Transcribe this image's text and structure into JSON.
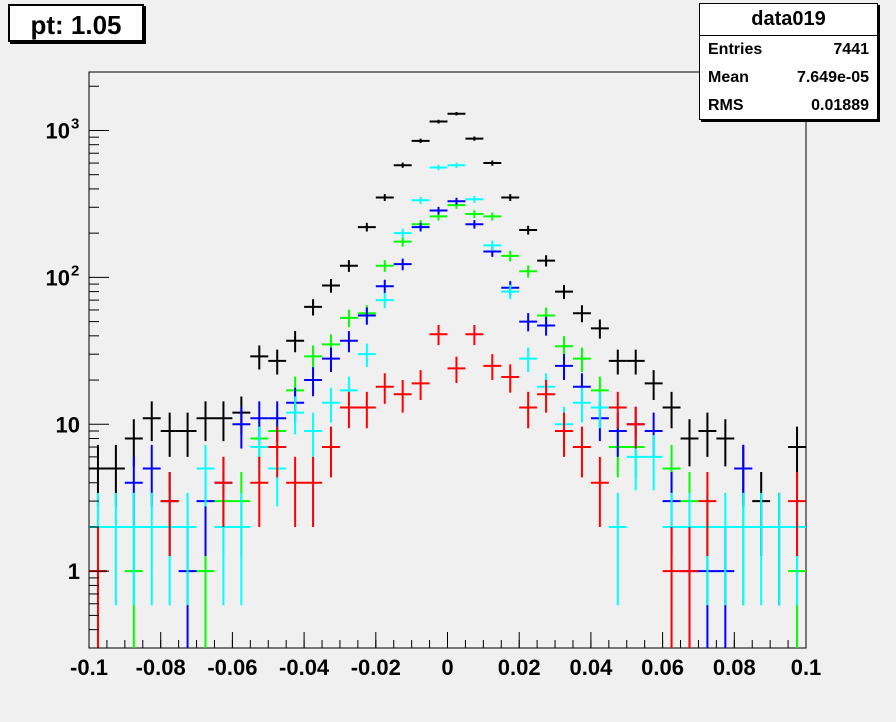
{
  "title_box": {
    "text": "pt: 1.05"
  },
  "stats": {
    "name": "data019",
    "rows": [
      {
        "label": "Entries",
        "value": "7441"
      },
      {
        "label": "Mean",
        "value": "7.649e-05"
      },
      {
        "label": "RMS",
        "value": "0.01889"
      }
    ]
  },
  "chart_data": {
    "type": "scatter",
    "title": "",
    "xlabel": "",
    "ylabel": "",
    "xlim": [
      -0.1,
      0.1
    ],
    "ylim": [
      0.3,
      2500
    ],
    "log_y": true,
    "grid": false,
    "x_ticks": [
      {
        "v": -0.1,
        "label": "-0.1"
      },
      {
        "v": -0.08,
        "label": "-0.08"
      },
      {
        "v": -0.06,
        "label": "-0.06"
      },
      {
        "v": -0.04,
        "label": "-0.04"
      },
      {
        "v": -0.02,
        "label": "-0.02"
      },
      {
        "v": 0,
        "label": "0"
      },
      {
        "v": 0.02,
        "label": "0.02"
      },
      {
        "v": 0.04,
        "label": "0.04"
      },
      {
        "v": 0.06,
        "label": "0.06"
      },
      {
        "v": 0.08,
        "label": "0.08"
      },
      {
        "v": 0.1,
        "label": "0.1"
      }
    ],
    "y_ticks": [
      {
        "v": 1,
        "label": "1"
      },
      {
        "v": 10,
        "label": "10"
      },
      {
        "v": 100,
        "label": "10",
        "exp": "2"
      },
      {
        "v": 1000,
        "label": "10",
        "exp": "3"
      }
    ],
    "bin_width": 0.005,
    "series": [
      {
        "color": "#000000",
        "x": [
          -0.0975,
          -0.0925,
          -0.0875,
          -0.0825,
          -0.0775,
          -0.0725,
          -0.0675,
          -0.0625,
          -0.0575,
          -0.0525,
          -0.0475,
          -0.0425,
          -0.0375,
          -0.0325,
          -0.0275,
          -0.0225,
          -0.0175,
          -0.0125,
          -0.0075,
          -0.0025,
          0.0025,
          0.0075,
          0.0125,
          0.0175,
          0.0225,
          0.0275,
          0.0325,
          0.0375,
          0.0425,
          0.0475,
          0.0525,
          0.0575,
          0.0625,
          0.0675,
          0.0725,
          0.0775,
          0.0825,
          0.0875,
          0.0925,
          0.0975
        ],
        "y": [
          5,
          5,
          8,
          11,
          9,
          9,
          11,
          11,
          12,
          29,
          27,
          37,
          63,
          88,
          120,
          220,
          350,
          580,
          850,
          1150,
          1300,
          880,
          600,
          350,
          210,
          130,
          80,
          57,
          45,
          27,
          27,
          19,
          13,
          8,
          9,
          8,
          5,
          3,
          2,
          7
        ]
      },
      {
        "color": "#00ff00",
        "x": [
          -0.0875,
          -0.0775,
          -0.0675,
          -0.0625,
          -0.0575,
          -0.0525,
          -0.0475,
          -0.0425,
          -0.0375,
          -0.0325,
          -0.0275,
          -0.0225,
          -0.0175,
          -0.0125,
          -0.0075,
          -0.0025,
          0.0025,
          0.0075,
          0.0125,
          0.0175,
          0.0225,
          0.0275,
          0.0325,
          0.0375,
          0.0425,
          0.0475,
          0.0525,
          0.0625,
          0.0675,
          0.0725,
          0.0825,
          0.0975
        ],
        "y": [
          1,
          3,
          1,
          3,
          3,
          8,
          9,
          17,
          29,
          35,
          53,
          57,
          120,
          175,
          230,
          260,
          310,
          270,
          260,
          140,
          110,
          55,
          34,
          28,
          17,
          7,
          7,
          5,
          3,
          2,
          2,
          1
        ]
      },
      {
        "color": "#0000ff",
        "x": [
          -0.0875,
          -0.0825,
          -0.0775,
          -0.0725,
          -0.0675,
          -0.0625,
          -0.0575,
          -0.0525,
          -0.0475,
          -0.0425,
          -0.0375,
          -0.0325,
          -0.0275,
          -0.0225,
          -0.0175,
          -0.0125,
          -0.0075,
          -0.0025,
          0.0025,
          0.0075,
          0.0125,
          0.0175,
          0.0225,
          0.0275,
          0.0325,
          0.0375,
          0.0425,
          0.0475,
          0.0525,
          0.0575,
          0.0625,
          0.0675,
          0.0725,
          0.0775,
          0.0825
        ],
        "y": [
          4,
          5,
          3,
          1,
          3,
          4,
          10,
          11,
          11,
          14,
          20,
          28,
          37,
          55,
          87,
          123,
          220,
          285,
          330,
          230,
          150,
          85,
          50,
          47,
          25,
          18,
          11,
          9,
          10,
          9,
          3,
          1,
          1,
          1,
          5
        ]
      },
      {
        "color": "#00ffff",
        "x": [
          -0.0975,
          -0.0925,
          -0.0875,
          -0.0825,
          -0.0775,
          -0.0725,
          -0.0675,
          -0.0625,
          -0.0575,
          -0.0525,
          -0.0475,
          -0.0425,
          -0.0375,
          -0.0325,
          -0.0275,
          -0.0225,
          -0.0175,
          -0.0125,
          -0.0075,
          -0.0025,
          0.0025,
          0.0075,
          0.0125,
          0.0175,
          0.0225,
          0.0275,
          0.0325,
          0.0375,
          0.0425,
          0.0475,
          0.0525,
          0.0575,
          0.0625,
          0.0675,
          0.0725,
          0.0775,
          0.0825,
          0.0875,
          0.0925,
          0.0975
        ],
        "y": [
          2,
          2,
          2,
          2,
          2,
          2,
          5,
          2,
          2,
          7,
          5,
          12,
          9,
          14,
          17,
          30,
          70,
          200,
          335,
          560,
          580,
          340,
          165,
          80,
          28,
          18,
          10,
          14,
          13,
          2,
          6,
          6,
          2,
          2,
          2,
          2,
          2,
          2,
          2,
          2
        ]
      },
      {
        "color": "#ff0000",
        "x": [
          -0.0975,
          -0.0775,
          -0.0625,
          -0.0525,
          -0.0475,
          -0.0425,
          -0.0375,
          -0.0325,
          -0.0275,
          -0.0225,
          -0.0175,
          -0.0125,
          -0.0075,
          -0.0025,
          0.0025,
          0.0075,
          0.0125,
          0.0175,
          0.0225,
          0.0275,
          0.0325,
          0.0375,
          0.0425,
          0.0475,
          0.0525,
          0.0625,
          0.0675,
          0.0725,
          0.0975
        ],
        "y": [
          1,
          3,
          4,
          4,
          7,
          4,
          4,
          7,
          13,
          13,
          18,
          16,
          19,
          41,
          24,
          41,
          25,
          21,
          13,
          16,
          9,
          7,
          4,
          13,
          10,
          1,
          1,
          3,
          3
        ]
      }
    ]
  }
}
